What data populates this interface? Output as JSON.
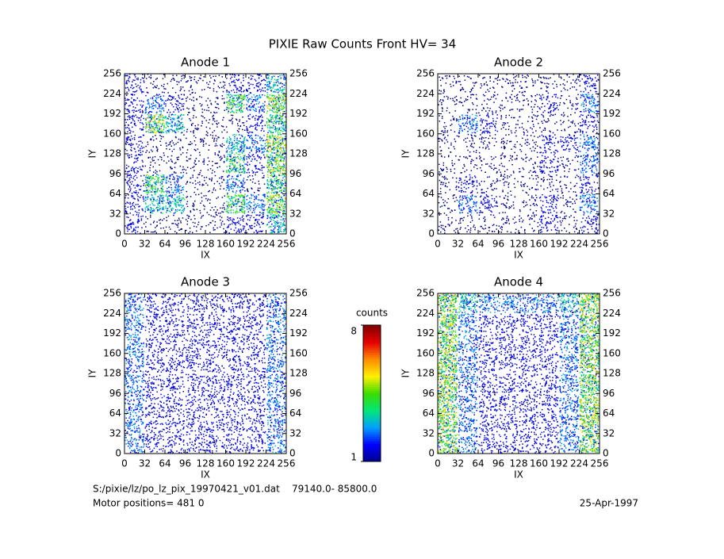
{
  "chart_data": [
    {
      "type": "heatmap",
      "title": "Anode 1",
      "x_label": "IX",
      "y_label": "IY",
      "xlim": [
        0,
        256
      ],
      "ylim": [
        0,
        256
      ],
      "xticks": [
        0,
        32,
        64,
        96,
        128,
        160,
        192,
        224,
        256
      ],
      "yticks": [
        0,
        32,
        64,
        96,
        128,
        160,
        192,
        224,
        256
      ],
      "z": [
        [
          2,
          1,
          1,
          1,
          1,
          2,
          2,
          4
        ],
        [
          2,
          4,
          4,
          1,
          1,
          5,
          3,
          6
        ],
        [
          2,
          5,
          3,
          1,
          1,
          3,
          1,
          5
        ],
        [
          2,
          1,
          1,
          1,
          1,
          5,
          2,
          6
        ],
        [
          2,
          1,
          1,
          1,
          1,
          4,
          3,
          6
        ],
        [
          2,
          6,
          4,
          1,
          1,
          1,
          2,
          5
        ],
        [
          2,
          3,
          2,
          1,
          1,
          5,
          3,
          6
        ],
        [
          2,
          1,
          1,
          1,
          1,
          2,
          2,
          4
        ]
      ]
    },
    {
      "type": "heatmap",
      "title": "Anode 2",
      "x_label": "IX",
      "y_label": "IY",
      "xlim": [
        0,
        256
      ],
      "ylim": [
        0,
        256
      ],
      "xticks": [
        0,
        32,
        64,
        96,
        128,
        160,
        192,
        224,
        256
      ],
      "yticks": [
        0,
        32,
        64,
        96,
        128,
        160,
        192,
        224,
        256
      ],
      "z": [
        [
          1,
          1,
          1,
          1,
          1,
          2,
          1,
          2
        ],
        [
          1,
          3,
          2,
          1,
          1,
          2,
          1,
          3
        ],
        [
          1,
          2,
          1,
          1,
          1,
          1,
          1,
          2
        ],
        [
          1,
          1,
          1,
          1,
          1,
          2,
          1,
          3
        ],
        [
          1,
          1,
          1,
          1,
          1,
          2,
          2,
          3
        ],
        [
          1,
          3,
          2,
          1,
          1,
          1,
          1,
          2
        ],
        [
          1,
          1,
          1,
          1,
          1,
          2,
          1,
          3
        ],
        [
          1,
          1,
          1,
          1,
          1,
          1,
          1,
          2
        ]
      ]
    },
    {
      "type": "heatmap",
      "title": "Anode 3",
      "x_label": "IX",
      "y_label": "IY",
      "xlim": [
        0,
        256
      ],
      "ylim": [
        0,
        256
      ],
      "xticks": [
        0,
        32,
        64,
        96,
        128,
        160,
        192,
        224,
        256
      ],
      "yticks": [
        0,
        32,
        64,
        96,
        128,
        160,
        192,
        224,
        256
      ],
      "z": [
        [
          3,
          2,
          2,
          2,
          2,
          2,
          2,
          3
        ],
        [
          3,
          2,
          2,
          2,
          2,
          2,
          2,
          3
        ],
        [
          3,
          2,
          2,
          2,
          2,
          2,
          2,
          3
        ],
        [
          3,
          2,
          2,
          2,
          2,
          2,
          2,
          3
        ],
        [
          3,
          2,
          2,
          2,
          2,
          2,
          2,
          3
        ],
        [
          3,
          2,
          2,
          2,
          2,
          2,
          2,
          3
        ],
        [
          3,
          2,
          2,
          2,
          2,
          2,
          2,
          3
        ],
        [
          3,
          2,
          2,
          2,
          2,
          2,
          2,
          3
        ]
      ]
    },
    {
      "type": "heatmap",
      "title": "Anode 4",
      "x_label": "IX",
      "y_label": "IY",
      "xlim": [
        0,
        256
      ],
      "ylim": [
        0,
        256
      ],
      "xticks": [
        0,
        32,
        64,
        96,
        128,
        160,
        192,
        224,
        256
      ],
      "yticks": [
        0,
        32,
        64,
        96,
        128,
        160,
        192,
        224,
        256
      ],
      "z": [
        [
          6,
          3,
          2,
          2,
          2,
          2,
          3,
          6
        ],
        [
          6,
          3,
          2,
          2,
          2,
          2,
          3,
          6
        ],
        [
          6,
          3,
          2,
          2,
          2,
          2,
          3,
          6
        ],
        [
          6,
          3,
          2,
          2,
          2,
          2,
          3,
          6
        ],
        [
          6,
          3,
          2,
          2,
          2,
          2,
          3,
          6
        ],
        [
          6,
          3,
          2,
          2,
          2,
          2,
          3,
          6
        ],
        [
          6,
          3,
          2,
          2,
          2,
          2,
          3,
          6
        ],
        [
          6,
          4,
          3,
          3,
          3,
          3,
          4,
          6
        ]
      ]
    }
  ],
  "title": "PIXIE Raw Counts Front HV= 34",
  "colorbar": {
    "label": "counts",
    "lim": [
      1,
      8
    ],
    "ticks": [
      1,
      8
    ]
  },
  "footer": {
    "file": "S:/pixie/lz/po_lz_pix_19970421_v01.dat",
    "range": "79140.0- 85800.0",
    "motor": "Motor positions= 481 0",
    "date": "25-Apr-1997"
  }
}
